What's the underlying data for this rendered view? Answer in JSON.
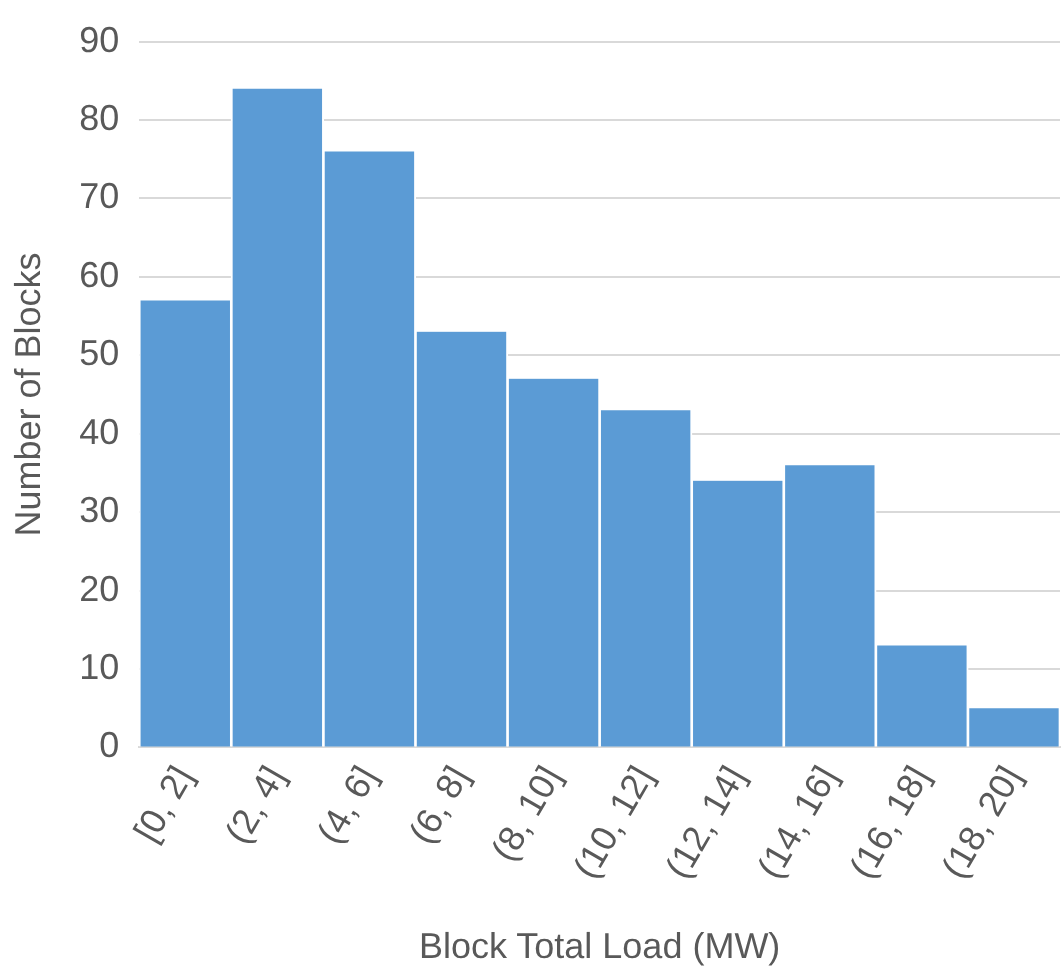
{
  "chart_data": {
    "type": "bar",
    "xlabel": "Block Total Load (MW)",
    "ylabel": "Number of Blocks",
    "categories": [
      "[0, 2]",
      "(2, 4]",
      "(4, 6]",
      "(6, 8]",
      "(8, 10]",
      "(10, 12]",
      "(12, 14]",
      "(14, 16]",
      "(16, 18]",
      "(18, 20]"
    ],
    "values": [
      57,
      84,
      76,
      53,
      47,
      43,
      34,
      36,
      13,
      5
    ],
    "color": "#5b9bd5",
    "ylim": [
      0,
      90
    ],
    "yticks": [
      0,
      10,
      20,
      30,
      40,
      50,
      60,
      70,
      80,
      90
    ],
    "grid": "y",
    "legend": false
  }
}
